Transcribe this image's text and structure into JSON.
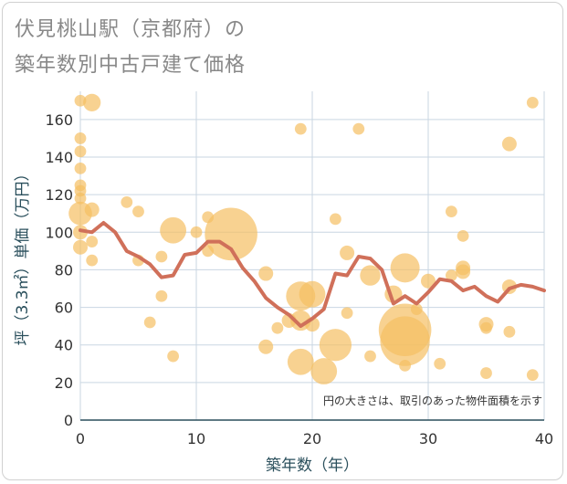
{
  "title_line1": "伏見桃山駅（京都府）の",
  "title_line2": "築年数別中古戸建て価格",
  "note": "円の大きさは、取引のあった物件面積を示す",
  "colors": {
    "bubble": "#f5bf63",
    "line": "#d0705a",
    "grid": "#c9d6e2",
    "axis": "#2a4f5c"
  },
  "chart_data": {
    "type": "scatter",
    "xlabel": "築年数（年）",
    "ylabel": "坪（3.3㎡）単価（万円）",
    "xlim": [
      0,
      40
    ],
    "ylim": [
      0,
      175
    ],
    "xticks": [
      0,
      10,
      20,
      30,
      40
    ],
    "yticks": [
      0,
      20,
      40,
      60,
      80,
      100,
      120,
      140,
      160
    ],
    "bubbles": [
      {
        "x": 0,
        "y": 170,
        "s": 4
      },
      {
        "x": 0,
        "y": 150,
        "s": 4
      },
      {
        "x": 0,
        "y": 143,
        "s": 4
      },
      {
        "x": 0,
        "y": 134,
        "s": 4
      },
      {
        "x": 0,
        "y": 125,
        "s": 4
      },
      {
        "x": 0,
        "y": 122,
        "s": 4
      },
      {
        "x": 0,
        "y": 118,
        "s": 4
      },
      {
        "x": 0,
        "y": 110,
        "s": 8
      },
      {
        "x": 0,
        "y": 100,
        "s": 5
      },
      {
        "x": 0,
        "y": 92,
        "s": 5
      },
      {
        "x": 1,
        "y": 169,
        "s": 6
      },
      {
        "x": 1,
        "y": 112,
        "s": 5
      },
      {
        "x": 1,
        "y": 95,
        "s": 4
      },
      {
        "x": 1,
        "y": 85,
        "s": 4
      },
      {
        "x": 4,
        "y": 116,
        "s": 4
      },
      {
        "x": 5,
        "y": 111,
        "s": 4
      },
      {
        "x": 5,
        "y": 85,
        "s": 4
      },
      {
        "x": 6,
        "y": 52,
        "s": 4
      },
      {
        "x": 7,
        "y": 87,
        "s": 4
      },
      {
        "x": 7,
        "y": 66,
        "s": 4
      },
      {
        "x": 8,
        "y": 101,
        "s": 9
      },
      {
        "x": 8,
        "y": 34,
        "s": 4
      },
      {
        "x": 10,
        "y": 100,
        "s": 4
      },
      {
        "x": 11,
        "y": 108,
        "s": 4
      },
      {
        "x": 11,
        "y": 90,
        "s": 4
      },
      {
        "x": 13,
        "y": 99,
        "s": 18
      },
      {
        "x": 16,
        "y": 78,
        "s": 5
      },
      {
        "x": 16,
        "y": 39,
        "s": 5
      },
      {
        "x": 17,
        "y": 49,
        "s": 4
      },
      {
        "x": 18,
        "y": 53,
        "s": 5
      },
      {
        "x": 19,
        "y": 155,
        "s": 4
      },
      {
        "x": 19,
        "y": 66,
        "s": 10
      },
      {
        "x": 19,
        "y": 53,
        "s": 7
      },
      {
        "x": 19,
        "y": 31,
        "s": 9
      },
      {
        "x": 20,
        "y": 67,
        "s": 9
      },
      {
        "x": 20,
        "y": 51,
        "s": 5
      },
      {
        "x": 21,
        "y": 26,
        "s": 9
      },
      {
        "x": 22,
        "y": 107,
        "s": 4
      },
      {
        "x": 22,
        "y": 40,
        "s": 11
      },
      {
        "x": 23,
        "y": 89,
        "s": 5
      },
      {
        "x": 23,
        "y": 57,
        "s": 4
      },
      {
        "x": 24,
        "y": 155,
        "s": 4
      },
      {
        "x": 25,
        "y": 77,
        "s": 7
      },
      {
        "x": 25,
        "y": 34,
        "s": 4
      },
      {
        "x": 27,
        "y": 67,
        "s": 6
      },
      {
        "x": 28,
        "y": 81,
        "s": 10
      },
      {
        "x": 28,
        "y": 48,
        "s": 18
      },
      {
        "x": 28,
        "y": 42,
        "s": 17
      },
      {
        "x": 28,
        "y": 29,
        "s": 4
      },
      {
        "x": 29,
        "y": 59,
        "s": 4
      },
      {
        "x": 30,
        "y": 74,
        "s": 5
      },
      {
        "x": 31,
        "y": 30,
        "s": 4
      },
      {
        "x": 32,
        "y": 111,
        "s": 4
      },
      {
        "x": 32,
        "y": 77,
        "s": 4
      },
      {
        "x": 33,
        "y": 98,
        "s": 4
      },
      {
        "x": 33,
        "y": 81,
        "s": 5
      },
      {
        "x": 33,
        "y": 79,
        "s": 5
      },
      {
        "x": 35,
        "y": 51,
        "s": 5
      },
      {
        "x": 35,
        "y": 49,
        "s": 4
      },
      {
        "x": 35,
        "y": 25,
        "s": 4
      },
      {
        "x": 37,
        "y": 147,
        "s": 5
      },
      {
        "x": 37,
        "y": 71,
        "s": 5
      },
      {
        "x": 37,
        "y": 47,
        "s": 4
      },
      {
        "x": 39,
        "y": 169,
        "s": 4
      },
      {
        "x": 39,
        "y": 24,
        "s": 4
      }
    ],
    "line": [
      {
        "x": 0,
        "y": 101
      },
      {
        "x": 1,
        "y": 100
      },
      {
        "x": 2,
        "y": 105
      },
      {
        "x": 3,
        "y": 100
      },
      {
        "x": 4,
        "y": 90
      },
      {
        "x": 5,
        "y": 87
      },
      {
        "x": 6,
        "y": 83
      },
      {
        "x": 7,
        "y": 76
      },
      {
        "x": 8,
        "y": 77
      },
      {
        "x": 9,
        "y": 88
      },
      {
        "x": 10,
        "y": 89
      },
      {
        "x": 11,
        "y": 95
      },
      {
        "x": 12,
        "y": 95
      },
      {
        "x": 13,
        "y": 91
      },
      {
        "x": 14,
        "y": 81
      },
      {
        "x": 15,
        "y": 74
      },
      {
        "x": 16,
        "y": 65
      },
      {
        "x": 17,
        "y": 60
      },
      {
        "x": 18,
        "y": 56
      },
      {
        "x": 19,
        "y": 50
      },
      {
        "x": 20,
        "y": 54
      },
      {
        "x": 21,
        "y": 59
      },
      {
        "x": 22,
        "y": 78
      },
      {
        "x": 23,
        "y": 77
      },
      {
        "x": 24,
        "y": 87
      },
      {
        "x": 25,
        "y": 86
      },
      {
        "x": 26,
        "y": 80
      },
      {
        "x": 27,
        "y": 62
      },
      {
        "x": 28,
        "y": 66
      },
      {
        "x": 29,
        "y": 62
      },
      {
        "x": 30,
        "y": 68
      },
      {
        "x": 31,
        "y": 75
      },
      {
        "x": 32,
        "y": 74
      },
      {
        "x": 33,
        "y": 69
      },
      {
        "x": 34,
        "y": 71
      },
      {
        "x": 35,
        "y": 66
      },
      {
        "x": 36,
        "y": 63
      },
      {
        "x": 37,
        "y": 70
      },
      {
        "x": 38,
        "y": 72
      },
      {
        "x": 39,
        "y": 71
      },
      {
        "x": 40,
        "y": 69
      }
    ]
  }
}
